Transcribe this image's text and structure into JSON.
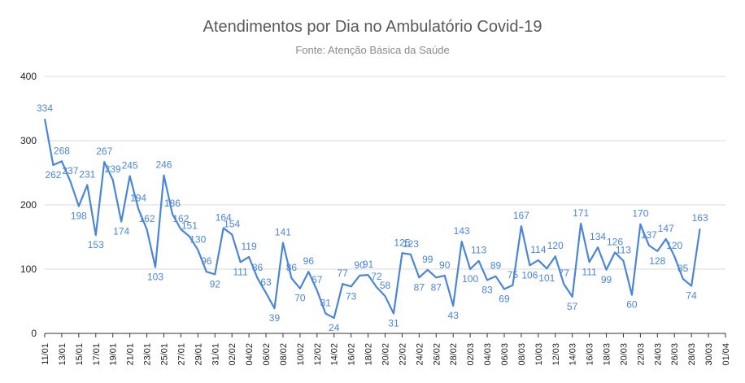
{
  "chart_data": {
    "type": "line",
    "title": "Atendimentos por Dia no Ambulatório Covid-19",
    "subtitle": "Fonte: Atenção Básica da Saúde",
    "xlabel": "",
    "ylabel": "",
    "ylim": [
      0,
      400
    ],
    "yticks": [
      "0",
      "100",
      "200",
      "300",
      "400"
    ],
    "grid": true,
    "legend": "none",
    "line_color": "#4a86d8",
    "label_color": "#4a86d8",
    "x_tick_labels": [
      "11/01",
      "13/01",
      "15/01",
      "17/01",
      "19/01",
      "21/01",
      "23/01",
      "25/01",
      "27/01",
      "29/01",
      "31/01",
      "02/02",
      "04/02",
      "06/02",
      "08/02",
      "10/02",
      "12/02",
      "14/02",
      "16/02",
      "18/02",
      "20/02",
      "22/02",
      "24/02",
      "26/02",
      "28/02",
      "02/03",
      "04/03",
      "06/03",
      "08/03",
      "10/03",
      "12/03",
      "14/03",
      "16/03",
      "18/03",
      "20/03",
      "22/03",
      "24/03",
      "26/03",
      "28/03",
      "30/03",
      "01/04"
    ],
    "values": [
      334,
      262,
      268,
      237,
      198,
      231,
      153,
      267,
      239,
      174,
      245,
      194,
      162,
      103,
      246,
      186,
      162,
      151,
      130,
      96,
      92,
      164,
      154,
      111,
      119,
      86,
      63,
      39,
      141,
      86,
      70,
      96,
      67,
      31,
      24,
      77,
      73,
      90,
      91,
      72,
      58,
      31,
      125,
      123,
      87,
      99,
      87,
      90,
      43,
      143,
      100,
      113,
      83,
      89,
      69,
      75,
      167,
      106,
      114,
      101,
      120,
      77,
      57,
      171,
      111,
      134,
      99,
      126,
      113,
      60,
      170,
      137,
      128,
      147,
      120,
      85,
      74,
      163
    ]
  }
}
